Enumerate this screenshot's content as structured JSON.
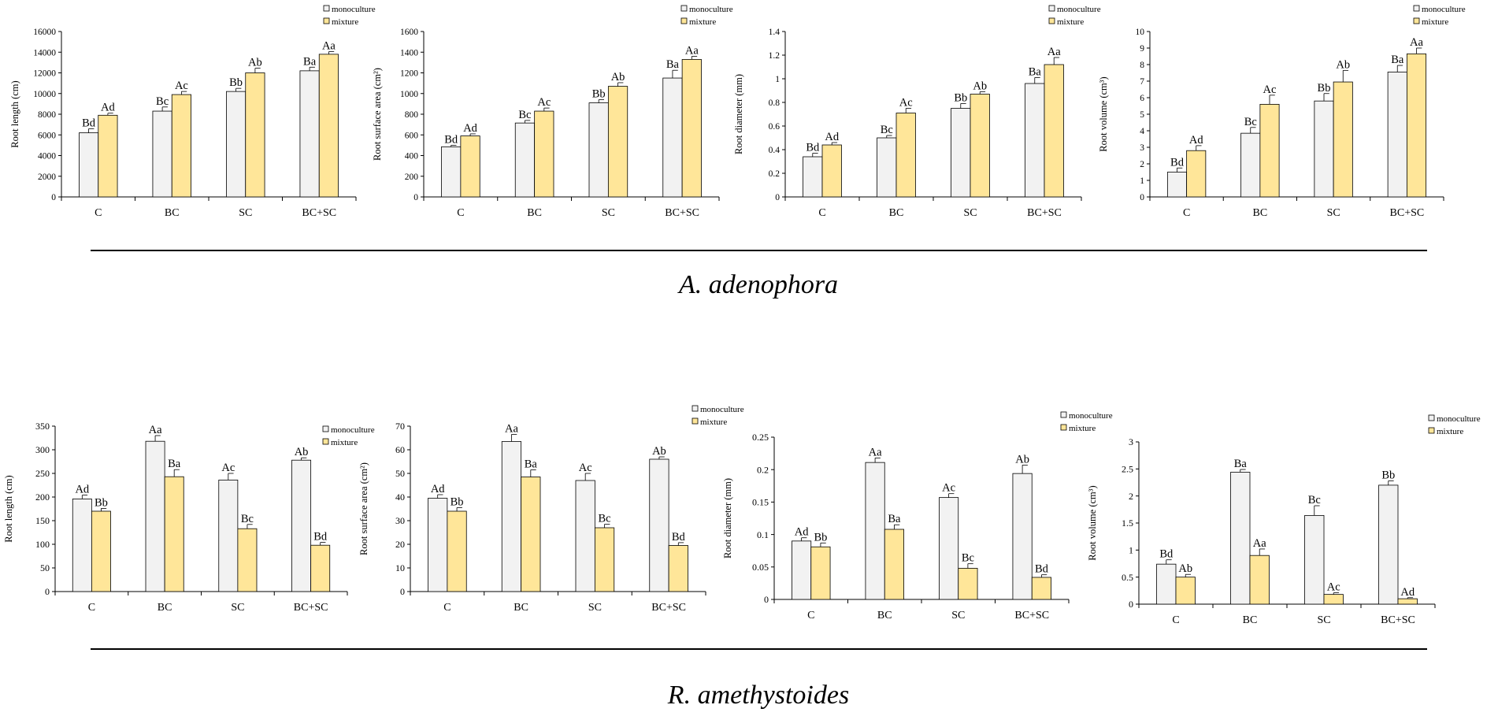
{
  "legend": {
    "monoculture": "monoculture",
    "mixture": "mixture"
  },
  "colors": {
    "monoculture": "#f2f2f2",
    "mixture": "#ffe699",
    "stroke": "#000000"
  },
  "sections": [
    {
      "species": "A. adenophora"
    },
    {
      "species": "R. amethystoides"
    }
  ],
  "chart_data": [
    {
      "type": "bar",
      "section": 0,
      "categories": [
        "C",
        "BC",
        "SC",
        "BC+SC"
      ],
      "ylabel": "Root length (cm)",
      "ylim": [
        0,
        16000
      ],
      "ystep": 2000,
      "yticks": [
        "0",
        "2000",
        "4000",
        "6000",
        "8000",
        "10000",
        "12000",
        "14000",
        "16000"
      ],
      "series": [
        {
          "name": "monoculture",
          "values": [
            6200,
            8300,
            10200,
            12200
          ],
          "errors": [
            400,
            400,
            300,
            350
          ],
          "labels": [
            "Bd",
            "Bc",
            "Bb",
            "Ba"
          ]
        },
        {
          "name": "mixture",
          "values": [
            7900,
            9900,
            12000,
            13800
          ],
          "errors": [
            200,
            300,
            450,
            250
          ],
          "labels": [
            "Ad",
            "Ac",
            "Ab",
            "Aa"
          ]
        }
      ]
    },
    {
      "type": "bar",
      "section": 0,
      "categories": [
        "C",
        "BC",
        "SC",
        "BC+SC"
      ],
      "ylabel": "Root surface area (cm²)",
      "ylim": [
        0,
        1600
      ],
      "ystep": 200,
      "yticks": [
        "0",
        "200",
        "400",
        "600",
        "800",
        "1000",
        "1200",
        "1400",
        "1600"
      ],
      "series": [
        {
          "name": "monoculture",
          "values": [
            485,
            715,
            910,
            1150
          ],
          "errors": [
            15,
            25,
            30,
            75
          ],
          "labels": [
            "Bd",
            "Bc",
            "Bb",
            "Ba"
          ]
        },
        {
          "name": "mixture",
          "values": [
            590,
            830,
            1070,
            1330
          ],
          "errors": [
            20,
            30,
            35,
            30
          ],
          "labels": [
            "Ad",
            "Ac",
            "Ab",
            "Aa"
          ]
        }
      ]
    },
    {
      "type": "bar",
      "section": 0,
      "categories": [
        "C",
        "BC",
        "SC",
        "BC+SC"
      ],
      "ylabel": "Root diameter (mm)",
      "ylim": [
        0,
        1.4
      ],
      "ystep": 0.2,
      "yticks": [
        "0",
        "0.2",
        "0.4",
        "0.6",
        "0.8",
        "1",
        "1.2",
        "1.4"
      ],
      "series": [
        {
          "name": "monoculture",
          "values": [
            0.34,
            0.5,
            0.75,
            0.96
          ],
          "errors": [
            0.03,
            0.02,
            0.04,
            0.05
          ],
          "labels": [
            "Bd",
            "Bc",
            "Bb",
            "Ba"
          ]
        },
        {
          "name": "mixture",
          "values": [
            0.44,
            0.71,
            0.87,
            1.12
          ],
          "errors": [
            0.02,
            0.04,
            0.02,
            0.06
          ],
          "labels": [
            "Ad",
            "Ac",
            "Ab",
            "Aa"
          ]
        }
      ]
    },
    {
      "type": "bar",
      "section": 0,
      "categories": [
        "C",
        "BC",
        "SC",
        "BC+SC"
      ],
      "ylabel": "Root volume (cm³)",
      "ylim": [
        0,
        10
      ],
      "ystep": 1,
      "yticks": [
        "0",
        "1",
        "2",
        "3",
        "4",
        "5",
        "6",
        "7",
        "8",
        "9",
        "10"
      ],
      "series": [
        {
          "name": "monoculture",
          "values": [
            1.5,
            3.85,
            5.8,
            7.55
          ],
          "errors": [
            0.25,
            0.35,
            0.45,
            0.4
          ],
          "labels": [
            "Bd",
            "Bc",
            "Bb",
            "Ba"
          ]
        },
        {
          "name": "mixture",
          "values": [
            2.8,
            5.6,
            6.95,
            8.65
          ],
          "errors": [
            0.3,
            0.55,
            0.7,
            0.35
          ],
          "labels": [
            "Ad",
            "Ac",
            "Ab",
            "Aa"
          ]
        }
      ]
    },
    {
      "type": "bar",
      "section": 1,
      "categories": [
        "C",
        "BC",
        "SC",
        "BC+SC"
      ],
      "ylabel": "Root length (cm)",
      "ylim": [
        0,
        350
      ],
      "ystep": 50,
      "yticks": [
        "0",
        "50",
        "100",
        "150",
        "200",
        "250",
        "300",
        "350"
      ],
      "series": [
        {
          "name": "monoculture",
          "values": [
            196,
            318,
            236,
            278
          ],
          "errors": [
            8,
            12,
            14,
            5
          ],
          "labels": [
            "Ad",
            "Aa",
            "Ac",
            "Ab"
          ]
        },
        {
          "name": "mixture",
          "values": [
            170,
            243,
            133,
            98
          ],
          "errors": [
            6,
            15,
            9,
            6
          ],
          "labels": [
            "Bb",
            "Ba",
            "Bc",
            "Bd"
          ]
        }
      ]
    },
    {
      "type": "bar",
      "section": 1,
      "categories": [
        "C",
        "BC",
        "SC",
        "BC+SC"
      ],
      "ylabel": "Root surface area (cm²)",
      "ylim": [
        0,
        70
      ],
      "ystep": 10,
      "yticks": [
        "0",
        "10",
        "20",
        "30",
        "40",
        "50",
        "60",
        "70"
      ],
      "series": [
        {
          "name": "monoculture",
          "values": [
            39.5,
            63.5,
            47,
            56
          ],
          "errors": [
            1.5,
            3,
            3,
            1
          ],
          "labels": [
            "Ad",
            "Aa",
            "Ac",
            "Ab"
          ]
        },
        {
          "name": "mixture",
          "values": [
            34,
            48.5,
            27,
            19.5
          ],
          "errors": [
            1.5,
            3,
            1.5,
            1.2
          ],
          "labels": [
            "Bb",
            "Ba",
            "Bc",
            "Bd"
          ]
        }
      ]
    },
    {
      "type": "bar",
      "section": 1,
      "categories": [
        "C",
        "BC",
        "SC",
        "BC+SC"
      ],
      "ylabel": "Root diameter (mm)",
      "ylim": [
        0,
        0.25
      ],
      "ystep": 0.05,
      "yticks": [
        "0",
        "0.05",
        "0.1",
        "0.15",
        "0.2",
        "0.25"
      ],
      "series": [
        {
          "name": "monoculture",
          "values": [
            0.09,
            0.211,
            0.157,
            0.194
          ],
          "errors": [
            0.005,
            0.007,
            0.006,
            0.013
          ],
          "labels": [
            "Ad",
            "Aa",
            "Ac",
            "Ab"
          ]
        },
        {
          "name": "mixture",
          "values": [
            0.081,
            0.108,
            0.048,
            0.034
          ],
          "errors": [
            0.006,
            0.007,
            0.007,
            0.004
          ],
          "labels": [
            "Bb",
            "Ba",
            "Bc",
            "Bd"
          ]
        }
      ]
    },
    {
      "type": "bar",
      "section": 1,
      "categories": [
        "C",
        "BC",
        "SC",
        "BC+SC"
      ],
      "ylabel": "Root volume (cm³)",
      "ylim": [
        0,
        3
      ],
      "ystep": 0.5,
      "yticks": [
        "0",
        "0.5",
        "1",
        "1.5",
        "2",
        "2.5",
        "3"
      ],
      "series": [
        {
          "name": "monoculture",
          "values": [
            0.74,
            2.44,
            1.64,
            2.2
          ],
          "errors": [
            0.08,
            0.05,
            0.18,
            0.08
          ],
          "labels": [
            "Bd",
            "Ba",
            "Bc",
            "Bb"
          ]
        },
        {
          "name": "mixture",
          "values": [
            0.5,
            0.9,
            0.18,
            0.1
          ],
          "errors": [
            0.05,
            0.12,
            0.03,
            0.02
          ],
          "labels": [
            "Ab",
            "Aa",
            "Ac",
            "Ad"
          ]
        }
      ]
    }
  ]
}
